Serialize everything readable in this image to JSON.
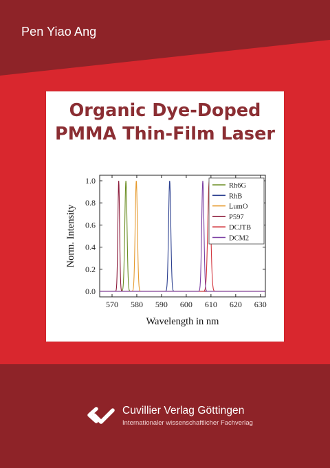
{
  "cover": {
    "author": "Pen Yiao Ang",
    "title_line1": "Organic Dye-Doped",
    "title_line2": "PMMA Thin-Film Laser",
    "publisher": "Cuvillier Verlag Göttingen",
    "publisher_subtitle": "Internationaler wissenschaftlicher Fachverlag",
    "colors": {
      "dark_red": "#8e2328",
      "bright_red": "#d9272e",
      "title": "#8b2e33"
    },
    "logo_icon": "cuvillier-logo-icon"
  },
  "chart_data": {
    "type": "line",
    "xlabel": "Wavelength in nm",
    "ylabel": "Norm. Intensity",
    "xlim": [
      565,
      632
    ],
    "ylim": [
      -0.05,
      1.05
    ],
    "xticks": [
      570,
      580,
      590,
      600,
      610,
      620,
      630
    ],
    "yticks": [
      0.0,
      0.2,
      0.4,
      0.6,
      0.8,
      1.0
    ],
    "xtick_labels": [
      "570",
      "580",
      "590",
      "600",
      "610",
      "620",
      "630"
    ],
    "ytick_labels": [
      "0.0",
      "0.2",
      "0.4",
      "0.6",
      "0.8",
      "1.0"
    ],
    "grid": false,
    "legend_position": "top-right",
    "series": [
      {
        "name": "Rh6G",
        "color": "#6b8e23",
        "peak": 575.6,
        "width": 0.45
      },
      {
        "name": "RhB",
        "color": "#2b3f8f",
        "peak": 593.3,
        "width": 0.45
      },
      {
        "name": "LumO",
        "color": "#e69a2e",
        "peak": 579.8,
        "width": 0.45
      },
      {
        "name": "P597",
        "color": "#8b1a3a",
        "peak": 572.7,
        "width": 0.35
      },
      {
        "name": "DCJTB",
        "color": "#d2343c",
        "peak": 609.3,
        "width": 0.6
      },
      {
        "name": "DCM2",
        "color": "#7b3fa3",
        "peak": 606.7,
        "width": 0.45
      }
    ]
  }
}
